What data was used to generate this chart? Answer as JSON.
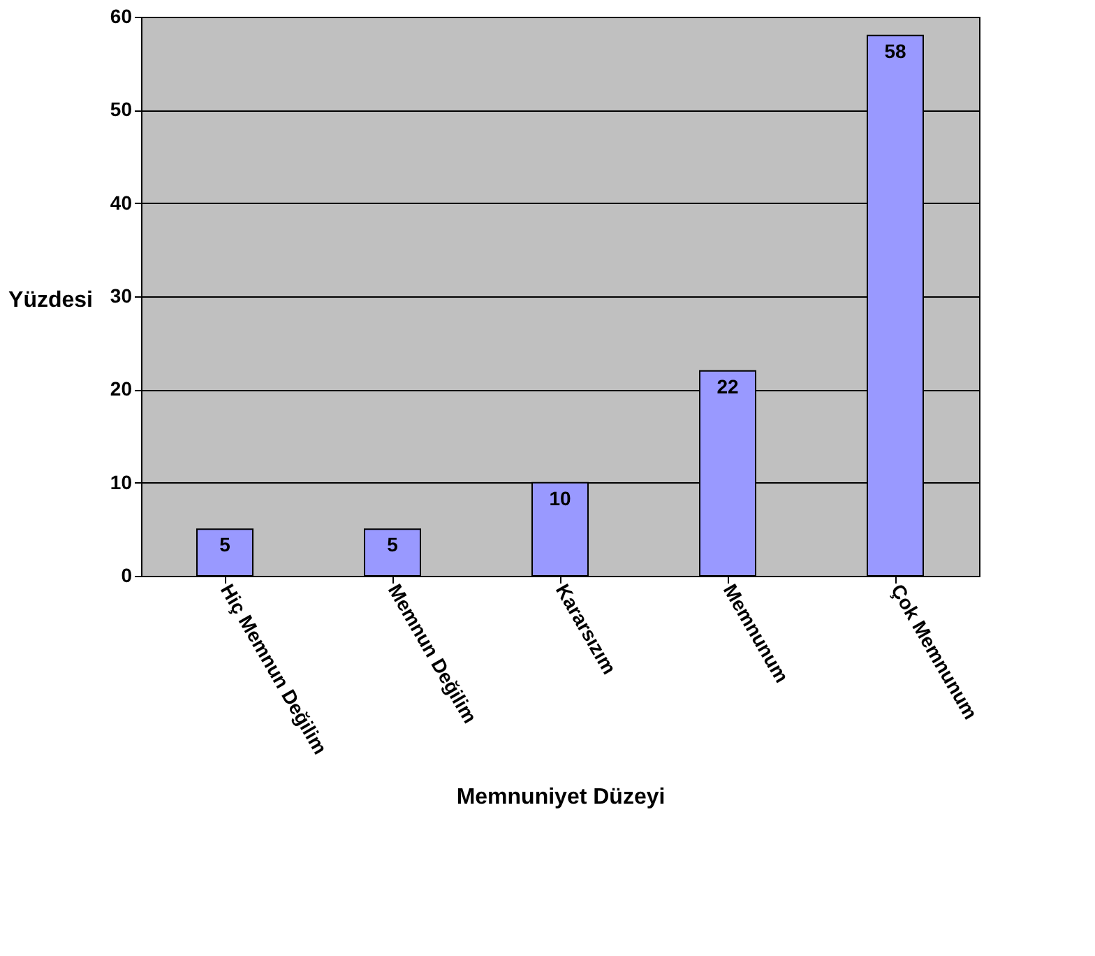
{
  "chart_data": {
    "type": "bar",
    "xlabel": "Memnuniyet Düzeyi",
    "ylabel": "Yüzdesi",
    "categories": [
      "Hiç Memnun Değilim",
      "Memnun Değilim",
      "Kararsızım",
      "Memnunum",
      "Çok Memnunum"
    ],
    "values": [
      5,
      5,
      10,
      22,
      58
    ],
    "color": "#9999ff",
    "ylim": [
      0,
      60
    ],
    "yticks": [
      0,
      10,
      20,
      30,
      40,
      50,
      60
    ],
    "grid": "y",
    "data_labels": true
  }
}
